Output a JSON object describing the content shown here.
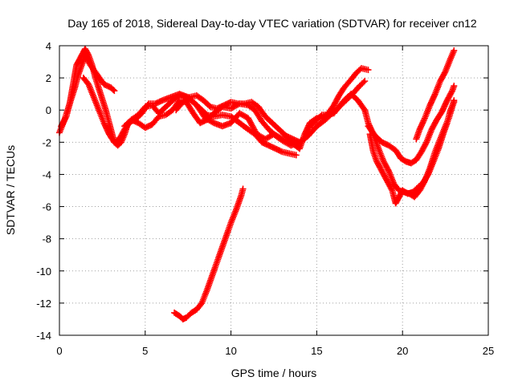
{
  "chart_data": {
    "type": "scatter",
    "title": "Day 165 of 2018, Sidereal Day-to-day VTEC variation (SDTVAR) for receiver cn12",
    "xlabel": "GPS time / hours",
    "ylabel": "SDTVAR / TECUs",
    "xlim": [
      0,
      25
    ],
    "ylim": [
      -14,
      4
    ],
    "xticks": [
      0,
      5,
      10,
      15,
      20,
      25
    ],
    "yticks": [
      -14,
      -12,
      -10,
      -8,
      -6,
      -4,
      -2,
      0,
      2,
      4
    ],
    "grid": true,
    "marker": "+",
    "color": "#ff0000",
    "series": [
      {
        "name": "track-1",
        "points": [
          [
            0,
            -1.4
          ],
          [
            0.3,
            -0.6
          ],
          [
            0.6,
            0.4
          ],
          [
            0.8,
            1.6
          ],
          [
            1.0,
            2.8
          ],
          [
            1.2,
            3.2
          ],
          [
            1.4,
            3.6
          ],
          [
            1.5,
            3.8
          ],
          [
            1.7,
            3.4
          ],
          [
            1.9,
            2.8
          ],
          [
            2.1,
            2.0
          ],
          [
            2.4,
            1.0
          ],
          [
            2.7,
            0.0
          ],
          [
            3.0,
            -1.2
          ],
          [
            3.2,
            -2.0
          ],
          [
            3.4,
            -2.2
          ],
          [
            3.6,
            -2.0
          ],
          [
            3.8,
            -1.5
          ],
          [
            4.0,
            -0.8
          ],
          [
            4.4,
            -0.6
          ],
          [
            4.8,
            -0.2
          ],
          [
            5.2,
            0.4
          ],
          [
            5.6,
            0.4
          ],
          [
            6.0,
            0.6
          ],
          [
            6.5,
            0.8
          ],
          [
            7.0,
            1.0
          ],
          [
            7.5,
            0.8
          ],
          [
            8.0,
            0.3
          ],
          [
            8.5,
            -0.5
          ],
          [
            9.0,
            -0.8
          ],
          [
            9.5,
            -1.0
          ],
          [
            10.0,
            -0.8
          ],
          [
            10.5,
            -0.2
          ],
          [
            11.0,
            -0.5
          ],
          [
            11.5,
            -1.5
          ],
          [
            12.0,
            -1.8
          ],
          [
            12.5,
            -1.5
          ],
          [
            13.0,
            -1.8
          ],
          [
            13.5,
            -2.0
          ],
          [
            14.0,
            -2.4
          ],
          [
            14.3,
            -1.5
          ],
          [
            14.6,
            -0.8
          ],
          [
            15.0,
            -0.5
          ],
          [
            15.3,
            -0.5
          ],
          [
            15.6,
            -0.3
          ],
          [
            16.0,
            0.3
          ],
          [
            16.3,
            0.9
          ],
          [
            16.6,
            1.4
          ],
          [
            17.0,
            1.9
          ],
          [
            17.3,
            2.3
          ],
          [
            17.6,
            2.6
          ],
          [
            18.0,
            2.5
          ]
        ]
      },
      {
        "name": "track-2",
        "points": [
          [
            0.1,
            -1.0
          ],
          [
            0.4,
            -0.4
          ],
          [
            0.6,
            0.4
          ],
          [
            0.9,
            1.4
          ],
          [
            1.1,
            2.2
          ],
          [
            1.3,
            2.8
          ],
          [
            1.5,
            3.4
          ],
          [
            1.8,
            2.8
          ],
          [
            2.2,
            2.2
          ],
          [
            2.6,
            1.6
          ],
          [
            3.0,
            1.4
          ],
          [
            3.2,
            1.2
          ]
        ]
      },
      {
        "name": "track-3",
        "points": [
          [
            1.4,
            2.0
          ],
          [
            1.7,
            1.6
          ],
          [
            2.0,
            0.8
          ],
          [
            2.3,
            0.0
          ],
          [
            2.6,
            -0.8
          ],
          [
            2.9,
            -1.5
          ],
          [
            3.2,
            -2.0
          ],
          [
            3.5,
            -1.8
          ],
          [
            3.8,
            -1.2
          ],
          [
            4.2,
            -0.6
          ],
          [
            4.6,
            -0.8
          ],
          [
            5.0,
            -1.1
          ],
          [
            5.4,
            -0.9
          ],
          [
            5.8,
            -0.4
          ],
          [
            6.2,
            -0.3
          ],
          [
            6.6,
            0.0
          ],
          [
            7.0,
            0.6
          ],
          [
            7.4,
            0.5
          ],
          [
            7.8,
            -0.2
          ],
          [
            8.2,
            -0.8
          ],
          [
            8.6,
            -0.6
          ],
          [
            9.0,
            -0.2
          ],
          [
            9.5,
            0.2
          ],
          [
            10.0,
            0.1
          ],
          [
            10.5,
            0.4
          ],
          [
            11.0,
            0.3
          ],
          [
            11.4,
            0.0
          ],
          [
            11.8,
            -0.7
          ],
          [
            12.2,
            -1.2
          ],
          [
            12.6,
            -1.6
          ],
          [
            13.0,
            -1.9
          ],
          [
            13.5,
            -2.2
          ],
          [
            14.0,
            -2.0
          ],
          [
            14.5,
            -1.6
          ],
          [
            15.0,
            -1.0
          ],
          [
            15.5,
            -0.6
          ],
          [
            16.0,
            -0.1
          ],
          [
            16.5,
            0.4
          ],
          [
            17.0,
            0.9
          ],
          [
            17.5,
            1.5
          ],
          [
            17.8,
            1.8
          ]
        ]
      },
      {
        "name": "track-4",
        "points": [
          [
            3.8,
            -1.0
          ],
          [
            4.2,
            -0.6
          ],
          [
            4.6,
            -0.3
          ],
          [
            5.0,
            0.2
          ],
          [
            5.4,
            0.3
          ],
          [
            5.8,
            -0.2
          ],
          [
            6.2,
            0.2
          ],
          [
            6.6,
            0.6
          ],
          [
            7.0,
            0.9
          ],
          [
            7.4,
            0.8
          ],
          [
            7.8,
            0.5
          ],
          [
            8.2,
            0.1
          ],
          [
            8.6,
            -0.3
          ],
          [
            9.0,
            -0.4
          ],
          [
            9.5,
            -0.3
          ],
          [
            10.0,
            -0.4
          ],
          [
            10.5,
            -0.8
          ],
          [
            11.0,
            -1.2
          ],
          [
            11.4,
            -1.5
          ],
          [
            11.8,
            -2.0
          ],
          [
            12.2,
            -2.2
          ],
          [
            12.6,
            -2.4
          ],
          [
            13.0,
            -2.6
          ],
          [
            13.4,
            -2.7
          ],
          [
            13.8,
            -2.8
          ]
        ]
      },
      {
        "name": "track-5",
        "points": [
          [
            6.8,
            0.0
          ],
          [
            7.2,
            0.5
          ],
          [
            7.6,
            0.8
          ],
          [
            8.0,
            0.9
          ],
          [
            8.4,
            0.6
          ],
          [
            8.8,
            0.2
          ],
          [
            9.2,
            0.1
          ],
          [
            9.6,
            0.3
          ],
          [
            10.0,
            0.5
          ],
          [
            10.4,
            0.4
          ],
          [
            10.8,
            0.4
          ],
          [
            11.2,
            0.5
          ],
          [
            11.6,
            0.2
          ],
          [
            12.0,
            -0.4
          ],
          [
            12.4,
            -0.8
          ],
          [
            12.8,
            -1.2
          ],
          [
            13.2,
            -1.6
          ],
          [
            13.6,
            -1.8
          ],
          [
            14.0,
            -2.0
          ]
        ]
      },
      {
        "name": "track-6",
        "points": [
          [
            14.3,
            -1.8
          ],
          [
            14.6,
            -1.0
          ],
          [
            15.0,
            -0.6
          ],
          [
            15.3,
            -0.3
          ],
          [
            15.6,
            -0.3
          ],
          [
            16.0,
            -0.2
          ],
          [
            16.3,
            0.2
          ],
          [
            16.6,
            0.6
          ],
          [
            17.0,
            1.0
          ],
          [
            17.4,
            0.6
          ],
          [
            17.8,
            0.0
          ],
          [
            18.0,
            -0.8
          ],
          [
            18.3,
            -1.5
          ],
          [
            18.6,
            -2.4
          ],
          [
            18.9,
            -3.2
          ],
          [
            19.2,
            -3.8
          ],
          [
            19.5,
            -4.6
          ],
          [
            19.8,
            -5.0
          ],
          [
            20.1,
            -5.1
          ],
          [
            20.4,
            -5.2
          ],
          [
            20.7,
            -5.4
          ],
          [
            21.0,
            -5.0
          ],
          [
            21.3,
            -4.4
          ],
          [
            21.6,
            -3.6
          ],
          [
            21.9,
            -2.6
          ],
          [
            22.2,
            -1.8
          ],
          [
            22.5,
            -1.0
          ],
          [
            22.7,
            -0.5
          ],
          [
            22.9,
            0.2
          ],
          [
            23.0,
            0.6
          ]
        ]
      },
      {
        "name": "track-7",
        "points": [
          [
            18.1,
            -1.5
          ],
          [
            18.3,
            -2.6
          ],
          [
            18.5,
            -3.2
          ],
          [
            18.8,
            -3.8
          ],
          [
            19.1,
            -4.4
          ],
          [
            19.4,
            -5.0
          ],
          [
            19.6,
            -5.8
          ],
          [
            19.8,
            -5.4
          ],
          [
            20.0,
            -5.0
          ],
          [
            20.3,
            -5.2
          ],
          [
            20.6,
            -5.1
          ],
          [
            20.9,
            -4.8
          ],
          [
            21.2,
            -4.5
          ],
          [
            21.5,
            -4.0
          ],
          [
            21.8,
            -3.2
          ],
          [
            22.1,
            -2.4
          ],
          [
            22.4,
            -1.4
          ],
          [
            22.6,
            -0.8
          ],
          [
            22.8,
            0.0
          ],
          [
            23.0,
            0.5
          ]
        ]
      },
      {
        "name": "track-8",
        "points": [
          [
            18.0,
            -1.0
          ],
          [
            18.4,
            -1.6
          ],
          [
            18.8,
            -2.0
          ],
          [
            19.2,
            -2.2
          ],
          [
            19.6,
            -2.5
          ],
          [
            19.9,
            -3.0
          ],
          [
            20.2,
            -3.2
          ],
          [
            20.5,
            -3.3
          ],
          [
            20.8,
            -3.1
          ],
          [
            21.1,
            -2.6
          ],
          [
            21.4,
            -2.0
          ],
          [
            21.7,
            -1.2
          ],
          [
            22.0,
            -0.6
          ],
          [
            22.3,
            -0.1
          ],
          [
            22.6,
            0.6
          ],
          [
            22.9,
            1.2
          ],
          [
            23.0,
            1.5
          ]
        ]
      },
      {
        "name": "track-9",
        "points": [
          [
            20.8,
            -1.8
          ],
          [
            21.0,
            -1.2
          ],
          [
            21.3,
            -0.5
          ],
          [
            21.6,
            0.3
          ],
          [
            21.9,
            1.0
          ],
          [
            22.2,
            1.8
          ],
          [
            22.5,
            2.4
          ],
          [
            22.8,
            3.2
          ],
          [
            23.0,
            3.7
          ]
        ]
      },
      {
        "name": "track-10",
        "points": [
          [
            6.7,
            -12.6
          ],
          [
            7.0,
            -12.8
          ],
          [
            7.2,
            -13.0
          ],
          [
            7.4,
            -12.9
          ],
          [
            7.7,
            -12.6
          ],
          [
            8.0,
            -12.4
          ],
          [
            8.3,
            -12.0
          ],
          [
            8.6,
            -11.2
          ],
          [
            8.9,
            -10.3
          ],
          [
            9.2,
            -9.4
          ],
          [
            9.5,
            -8.5
          ],
          [
            9.8,
            -7.6
          ],
          [
            10.0,
            -7.0
          ],
          [
            10.3,
            -6.2
          ],
          [
            10.6,
            -5.3
          ],
          [
            10.7,
            -4.9
          ]
        ]
      }
    ]
  }
}
